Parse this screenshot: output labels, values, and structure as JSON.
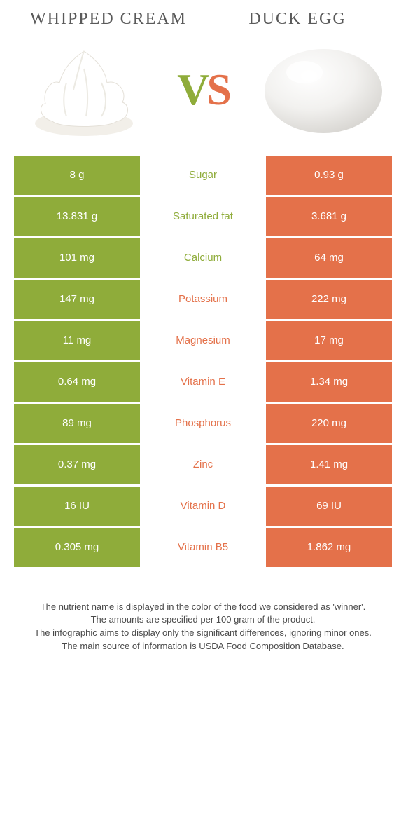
{
  "left_food": {
    "title": "WHIPPED CREAM"
  },
  "right_food": {
    "title": "DUCK EGG"
  },
  "vs": {
    "v": "V",
    "s": "S"
  },
  "colors": {
    "left": "#8fac3a",
    "right": "#e4714a",
    "text": "#4a4a4a"
  },
  "rows": [
    {
      "nutrient": "Sugar",
      "left": "8 g",
      "right": "0.93 g",
      "winner": "left"
    },
    {
      "nutrient": "Saturated fat",
      "left": "13.831 g",
      "right": "3.681 g",
      "winner": "left"
    },
    {
      "nutrient": "Calcium",
      "left": "101 mg",
      "right": "64 mg",
      "winner": "left"
    },
    {
      "nutrient": "Potassium",
      "left": "147 mg",
      "right": "222 mg",
      "winner": "right"
    },
    {
      "nutrient": "Magnesium",
      "left": "11 mg",
      "right": "17 mg",
      "winner": "right"
    },
    {
      "nutrient": "Vitamin E",
      "left": "0.64 mg",
      "right": "1.34 mg",
      "winner": "right"
    },
    {
      "nutrient": "Phosphorus",
      "left": "89 mg",
      "right": "220 mg",
      "winner": "right"
    },
    {
      "nutrient": "Zinc",
      "left": "0.37 mg",
      "right": "1.41 mg",
      "winner": "right"
    },
    {
      "nutrient": "Vitamin D",
      "left": "16 IU",
      "right": "69 IU",
      "winner": "right"
    },
    {
      "nutrient": "Vitamin B5",
      "left": "0.305 mg",
      "right": "1.862 mg",
      "winner": "right"
    }
  ],
  "footer": {
    "l1": "The nutrient name is displayed in the color of the food we considered as 'winner'.",
    "l2": "The amounts are specified per 100 gram of the product.",
    "l3": "The infographic aims to display only the significant differences, ignoring minor ones.",
    "l4": "The main source of information is USDA Food Composition Database."
  }
}
